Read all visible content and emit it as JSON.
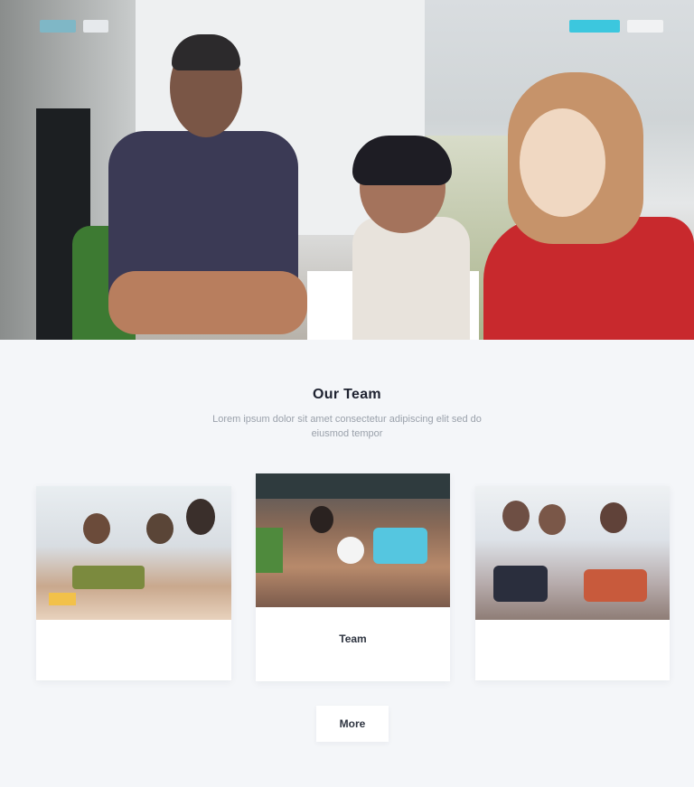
{
  "hero": {
    "nav_left_label": "",
    "nav_right_label": "",
    "accent_color": "#3cc7de"
  },
  "team": {
    "title": "Our Team",
    "subtitle": "Lorem ipsum dolor sit amet consectetur adipiscing elit sed do eiusmod tempor"
  },
  "cards": [
    {
      "name": "",
      "role": ""
    },
    {
      "name": "Team",
      "role": ""
    },
    {
      "name": "",
      "role": ""
    }
  ],
  "more_button": {
    "label": "More"
  },
  "colors": {
    "page_bg": "#f4f6f9",
    "card_bg": "#ffffff",
    "title": "#1e2230",
    "subtitle": "#9aa1ab"
  }
}
